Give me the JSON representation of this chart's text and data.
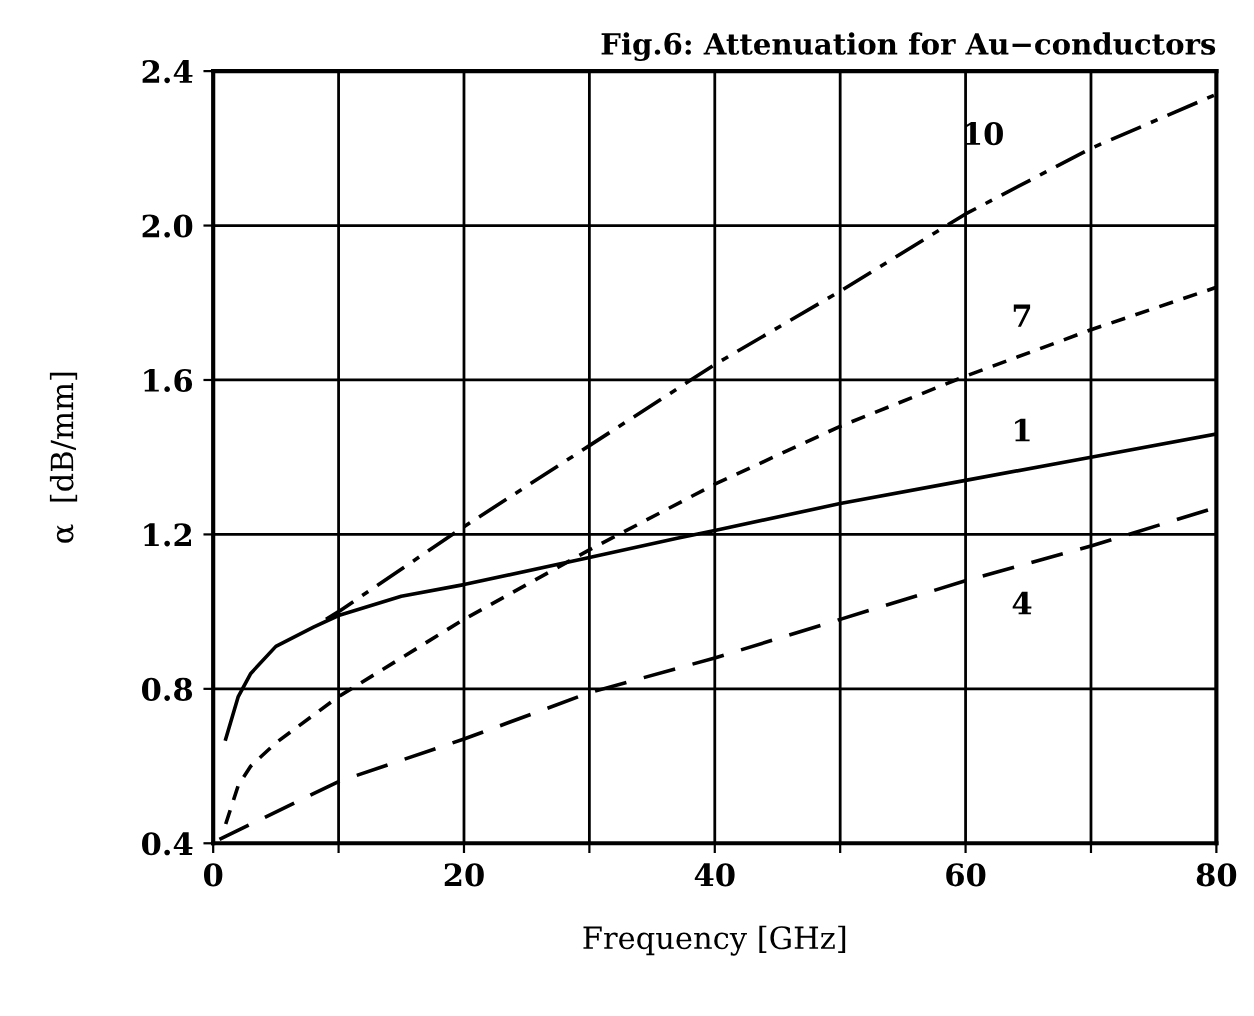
{
  "chart_data": {
    "type": "line",
    "title": "Fig.6: Attenuation for Au−conductors",
    "xlabel": "Frequency [GHz]",
    "ylabel": "α  [dB/mm]",
    "xlim": [
      0,
      80
    ],
    "ylim": [
      0.4,
      2.4
    ],
    "xticks": [
      0,
      {
        "value": 10,
        "label": null
      },
      20,
      {
        "value": 30,
        "label": null
      },
      40,
      {
        "value": 50,
        "label": null
      },
      60,
      {
        "value": 70,
        "label": null
      },
      80
    ],
    "yticks": [
      0.4,
      0.8,
      1.2,
      1.6,
      {
        "value": 2.0,
        "label": "2.0"
      },
      2.4
    ],
    "grid": true,
    "legend": false,
    "marker": "none",
    "series": [
      {
        "name": "1",
        "color": "#000000",
        "line_style": "solid",
        "x": [
          1,
          2,
          3,
          5,
          8,
          10,
          15,
          20,
          30,
          37,
          40,
          50,
          60,
          70,
          80
        ],
        "values": [
          0.67,
          0.78,
          0.84,
          0.91,
          0.96,
          0.99,
          1.04,
          1.07,
          1.14,
          1.19,
          1.21,
          1.28,
          1.34,
          1.4,
          1.46
        ]
      },
      {
        "name": "4",
        "color": "#000000",
        "line_style": "long_dashed",
        "x": [
          0.5,
          10,
          20,
          30,
          40,
          50,
          60,
          70,
          80
        ],
        "values": [
          0.41,
          0.56,
          0.67,
          0.79,
          0.88,
          0.98,
          1.08,
          1.17,
          1.27
        ]
      },
      {
        "name": "7",
        "color": "#000000",
        "line_style": "dashed",
        "x": [
          1,
          2,
          3,
          5,
          10,
          20,
          30,
          40,
          50,
          60,
          70,
          80
        ],
        "values": [
          0.45,
          0.55,
          0.6,
          0.66,
          0.78,
          0.98,
          1.16,
          1.33,
          1.48,
          1.61,
          1.73,
          1.84
        ]
      },
      {
        "name": "10",
        "color": "#000000",
        "line_style": "dashdot",
        "x": [
          9,
          10,
          20,
          30,
          40,
          50,
          60,
          70,
          80
        ],
        "values": [
          0.98,
          1.0,
          1.22,
          1.43,
          1.64,
          1.83,
          2.03,
          2.2,
          2.34
        ]
      }
    ]
  }
}
